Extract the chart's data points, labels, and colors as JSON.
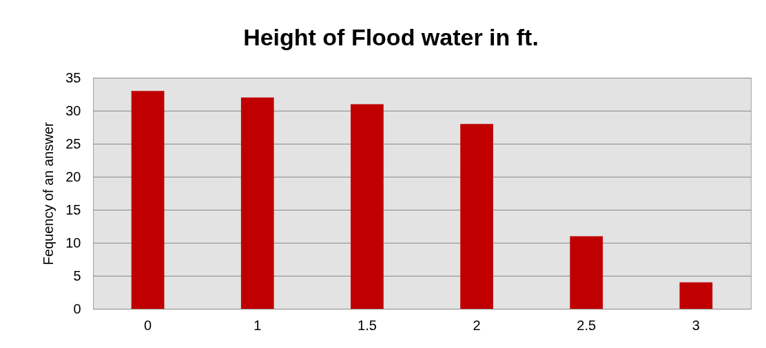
{
  "chart_data": {
    "type": "bar",
    "title": "Height of Flood water in ft.",
    "ylabel": "Fequency of an answer",
    "categories": [
      "0",
      "1",
      "1.5",
      "2",
      "2.5",
      "3"
    ],
    "values": [
      33,
      32,
      31,
      28,
      11,
      4
    ],
    "color": "#c00000",
    "ylim": [
      0,
      35
    ],
    "yticks": [
      0,
      5,
      10,
      15,
      20,
      25,
      30,
      35
    ],
    "grid": "y"
  }
}
